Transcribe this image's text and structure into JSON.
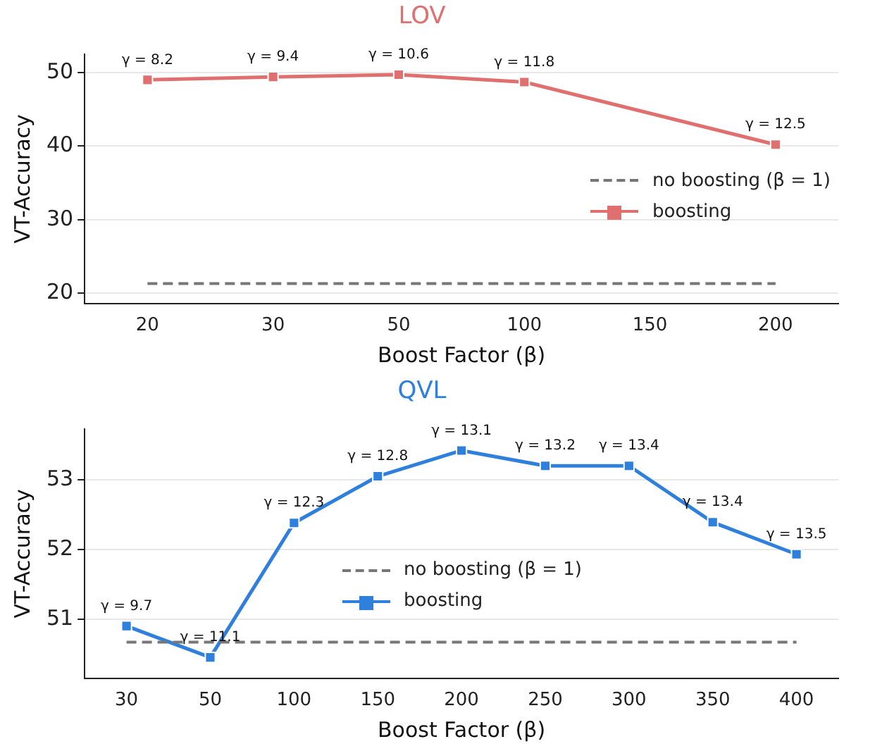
{
  "chart_data": [
    {
      "type": "line",
      "title": "LOV",
      "xlabel": "Boost Factor (β)",
      "ylabel": "VT-Accuracy",
      "categories": [
        "20",
        "30",
        "50",
        "100",
        "150",
        "200"
      ],
      "series": [
        {
          "name": "no boosting (β = 1)",
          "color": "#777777",
          "line_style": "dashed",
          "marker": "none",
          "values": [
            21.3,
            21.3,
            21.3,
            21.3,
            21.3,
            21.3
          ]
        },
        {
          "name": "boosting",
          "color": "#e07070",
          "values": [
            49.0,
            49.4,
            49.7,
            48.7,
            null,
            40.2
          ]
        }
      ],
      "ylim": [
        18.6,
        52.5
      ],
      "yticks": [
        20,
        30,
        40,
        50
      ],
      "grid": "y",
      "legend": "right",
      "marker": "square",
      "line_style": "solid",
      "annotations": [
        {
          "text": "γ = 8.2",
          "x": "20",
          "y": 49.0
        },
        {
          "text": "γ = 9.4",
          "x": "30",
          "y": 49.4
        },
        {
          "text": "γ = 10.6",
          "x": "50",
          "y": 49.7
        },
        {
          "text": "γ = 11.8",
          "x": "100",
          "y": 48.7
        },
        {
          "text": "γ = 12.5",
          "x": "200",
          "y": 40.2
        }
      ]
    },
    {
      "type": "line",
      "title": "QVL",
      "xlabel": "Boost Factor (β)",
      "ylabel": "VT-Accuracy",
      "categories": [
        "30",
        "50",
        "100",
        "150",
        "200",
        "250",
        "300",
        "350",
        "400"
      ],
      "series": [
        {
          "name": "no boosting (β = 1)",
          "color": "#777777",
          "line_style": "dashed",
          "marker": "none",
          "values": [
            50.67,
            50.67,
            50.67,
            50.67,
            50.67,
            50.67,
            50.67,
            50.67,
            50.67
          ]
        },
        {
          "name": "boosting",
          "color": "#2f80dd",
          "values": [
            50.9,
            50.45,
            52.38,
            53.05,
            53.42,
            53.2,
            53.2,
            52.39,
            51.93
          ]
        }
      ],
      "ylim": [
        50.15,
        53.73
      ],
      "yticks": [
        51,
        52,
        53
      ],
      "grid": "y",
      "legend": "bottom",
      "marker": "square",
      "line_style": "solid",
      "annotations": [
        {
          "text": "γ = 9.7",
          "x": "30",
          "y": 50.9
        },
        {
          "text": "γ = 11.1",
          "x": "50",
          "y": 50.45
        },
        {
          "text": "γ = 12.3",
          "x": "100",
          "y": 52.38
        },
        {
          "text": "γ = 12.8",
          "x": "150",
          "y": 53.05
        },
        {
          "text": "γ = 13.1",
          "x": "200",
          "y": 53.42
        },
        {
          "text": "γ = 13.2",
          "x": "250",
          "y": 53.2
        },
        {
          "text": "γ = 13.4",
          "x": "300",
          "y": 53.2
        },
        {
          "text": "γ = 13.4",
          "x": "350",
          "y": 52.39
        },
        {
          "text": "γ = 13.5",
          "x": "400",
          "y": 51.93
        }
      ]
    }
  ]
}
